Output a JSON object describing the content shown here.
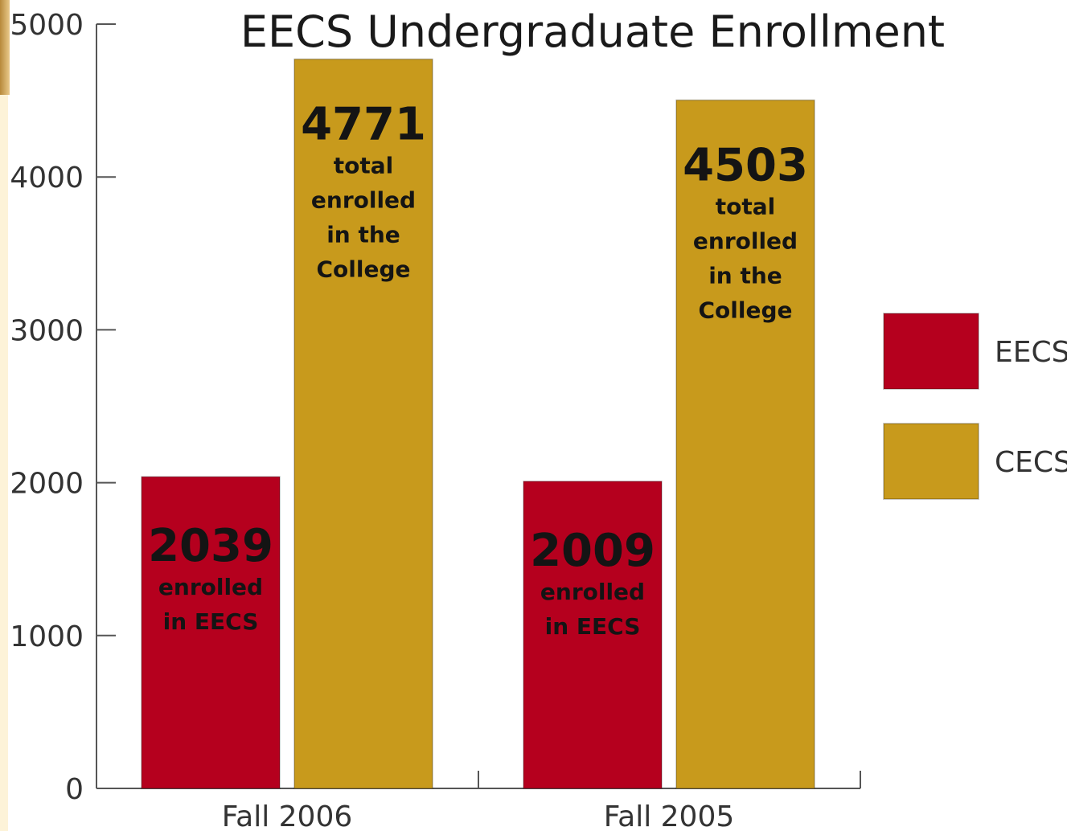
{
  "colors": {
    "eecs": "#b5001e",
    "cecs": "#c89a1c"
  },
  "chart_data": {
    "type": "bar",
    "title": "EECS Undergraduate Enrollment",
    "xlabel": "",
    "ylabel": "",
    "ylim": [
      0,
      5000
    ],
    "yticks": [
      "0",
      "1000",
      "2000",
      "3000",
      "4000",
      "5000"
    ],
    "categories": [
      "Fall 2006",
      "Fall 2005"
    ],
    "series": [
      {
        "name": "EECS",
        "color_key": "eecs",
        "values": [
          2039,
          2009
        ]
      },
      {
        "name": "CECS",
        "color_key": "cecs",
        "values": [
          4771,
          4503
        ]
      }
    ],
    "legend_position": "right",
    "data_labels": [
      [
        {
          "value": "2039",
          "lines": [
            "enrolled",
            "in EECS"
          ]
        },
        {
          "value": "2009",
          "lines": [
            "enrolled",
            "in EECS"
          ]
        }
      ],
      [
        {
          "value": "4771",
          "lines": [
            "total",
            "enrolled",
            "in the",
            "College"
          ]
        },
        {
          "value": "4503",
          "lines": [
            "total",
            "enrolled",
            "in the",
            "College"
          ]
        }
      ]
    ]
  }
}
